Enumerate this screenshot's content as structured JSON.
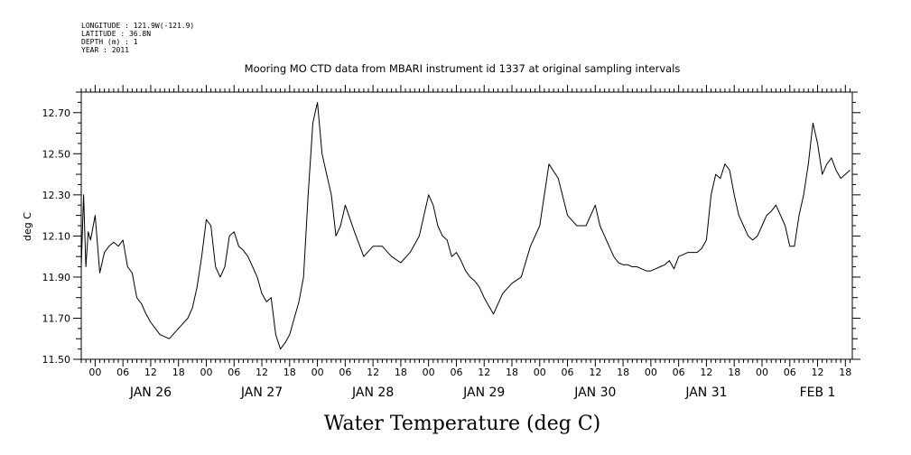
{
  "metadata": [
    "LONGITUDE : 121.9W(-121.9)",
    "LATITUDE : 36.8N",
    "DEPTH (m) : 1",
    "YEAR : 2011"
  ],
  "chart_data": {
    "type": "line",
    "title": "Mooring MO CTD data from MBARI instrument id 1337 at original sampling intervals",
    "xlabel": "Water Temperature (deg C)",
    "ylabel": "deg C",
    "ylim": [
      11.5,
      12.8
    ],
    "yticks": [
      "11.50",
      "11.70",
      "11.90",
      "12.10",
      "12.30",
      "12.50",
      "12.70"
    ],
    "xlim_hours_from_jan26_0000": [
      -3,
      163.5
    ],
    "hour_tick_labels": [
      "00",
      "06",
      "12",
      "18",
      "00",
      "06",
      "12",
      "18",
      "00",
      "06",
      "12",
      "18",
      "00",
      "06",
      "12",
      "18",
      "00",
      "06",
      "12",
      "18",
      "00",
      "06",
      "12",
      "18",
      "00",
      "06",
      "12",
      "18"
    ],
    "day_labels": [
      "JAN 26",
      "JAN 27",
      "JAN 28",
      "JAN 29",
      "JAN 30",
      "JAN 31",
      "FEB  1"
    ],
    "grid": false,
    "series": [
      {
        "x": [
          -3,
          -2.5,
          -2,
          -1.5,
          -1,
          0,
          1,
          2,
          3,
          4,
          5,
          6,
          7,
          8,
          9,
          10,
          11,
          12,
          14,
          16,
          18,
          20,
          21,
          22,
          23,
          24,
          25,
          26,
          27,
          28,
          29,
          30,
          31,
          32,
          33,
          34,
          35,
          36,
          37,
          38,
          39,
          40,
          41,
          42,
          43,
          44,
          45,
          46,
          47,
          48,
          49,
          50,
          51,
          52,
          53,
          54,
          56,
          58,
          60,
          62,
          64,
          66,
          68,
          70,
          72,
          73,
          74,
          75,
          76,
          77,
          78,
          79,
          80,
          81,
          82,
          83,
          84,
          86,
          88,
          90,
          92,
          94,
          96,
          98,
          100,
          102,
          104,
          106,
          107,
          108,
          109,
          110,
          111,
          112,
          113,
          114,
          115,
          116,
          117,
          118,
          119,
          120,
          121,
          122,
          123,
          124,
          125,
          126,
          127,
          128,
          129,
          130,
          131,
          132,
          133,
          134,
          135,
          136,
          137,
          138,
          139,
          140,
          141,
          142,
          143,
          144,
          145,
          146,
          147,
          148,
          149,
          150,
          151,
          152,
          153,
          154,
          155,
          156,
          157,
          158,
          159,
          160,
          161,
          162,
          163
        ],
        "y": [
          11.95,
          12.3,
          11.95,
          12.12,
          12.08,
          12.2,
          11.92,
          12.02,
          12.05,
          12.07,
          12.05,
          12.08,
          11.95,
          11.92,
          11.8,
          11.77,
          11.72,
          11.68,
          11.62,
          11.6,
          11.65,
          11.7,
          11.75,
          11.85,
          12.0,
          12.18,
          12.15,
          11.95,
          11.9,
          11.95,
          12.1,
          12.12,
          12.05,
          12.03,
          12.0,
          11.95,
          11.9,
          11.82,
          11.78,
          11.8,
          11.62,
          11.55,
          11.58,
          11.62,
          11.7,
          11.78,
          11.9,
          12.3,
          12.65,
          12.75,
          12.5,
          12.4,
          12.3,
          12.1,
          12.15,
          12.25,
          12.12,
          12.0,
          12.05,
          12.05,
          12.0,
          11.97,
          12.02,
          12.1,
          12.3,
          12.25,
          12.15,
          12.1,
          12.08,
          12.0,
          12.02,
          11.98,
          11.93,
          11.9,
          11.88,
          11.85,
          11.8,
          11.72,
          11.82,
          11.87,
          11.9,
          12.05,
          12.15,
          12.45,
          12.38,
          12.2,
          12.15,
          12.15,
          12.2,
          12.25,
          12.15,
          12.1,
          12.05,
          12.0,
          11.97,
          11.96,
          11.96,
          11.95,
          11.95,
          11.94,
          11.93,
          11.93,
          11.94,
          11.95,
          11.96,
          11.98,
          11.94,
          12.0,
          12.01,
          12.02,
          12.02,
          12.02,
          12.04,
          12.08,
          12.3,
          12.4,
          12.38,
          12.45,
          12.42,
          12.3,
          12.2,
          12.15,
          12.1,
          12.08,
          12.1,
          12.15,
          12.2,
          12.22,
          12.25,
          12.2,
          12.15,
          12.05,
          12.05,
          12.2,
          12.3,
          12.45,
          12.65,
          12.55,
          12.4,
          12.45,
          12.48,
          12.42,
          12.38,
          12.4,
          12.42
        ]
      }
    ]
  }
}
